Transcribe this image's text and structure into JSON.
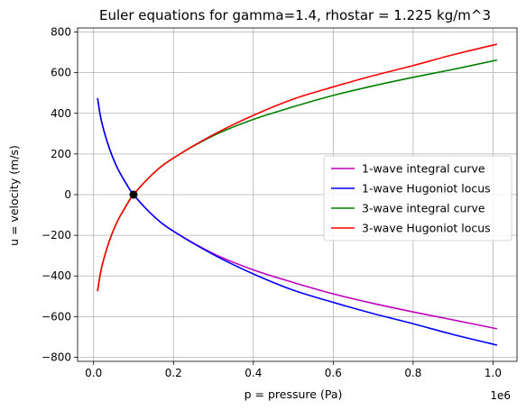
{
  "chart_data": {
    "type": "line",
    "title": "Euler equations for gamma=1.4, rhostar = 1.225 kg/m^3",
    "xlabel": "p = pressure (Pa)",
    "ylabel": "u = velocity (m/s)",
    "x_offset_label": "1e6",
    "xlim": [
      -40000,
      1060000
    ],
    "ylim": [
      -820,
      820
    ],
    "x_ticks": [
      0,
      200000,
      400000,
      600000,
      800000,
      1000000
    ],
    "x_tick_labels": [
      "0.0",
      "0.2",
      "0.4",
      "0.6",
      "0.8",
      "1.0"
    ],
    "y_ticks": [
      -800,
      -600,
      -400,
      -200,
      0,
      200,
      400,
      600,
      800
    ],
    "y_tick_labels": [
      "−800",
      "−600",
      "−400",
      "−200",
      "0",
      "200",
      "400",
      "600",
      "800"
    ],
    "grid": true,
    "legend_position": "center-right",
    "x": [
      10000,
      20000,
      40000,
      60000,
      80000,
      100000,
      150000,
      200000,
      300000,
      400000,
      500000,
      600000,
      700000,
      800000,
      900000,
      1010000
    ],
    "series": [
      {
        "name": "1-wave integral curve",
        "color": "#bf00bf",
        "values": [
          475,
          360,
          225,
          130,
          60,
          0,
          -105,
          -180,
          -290,
          -370,
          -432,
          -488,
          -535,
          -577,
          -616,
          -660
        ]
      },
      {
        "name": "1-wave Hugoniot locus",
        "color": "#0000ff",
        "values": [
          475,
          360,
          225,
          130,
          60,
          0,
          -105,
          -180,
          -295,
          -390,
          -470,
          -530,
          -585,
          -635,
          -688,
          -740
        ]
      },
      {
        "name": "3-wave integral curve",
        "color": "#008000",
        "values": [
          -475,
          -360,
          -225,
          -130,
          -60,
          0,
          105,
          180,
          290,
          370,
          432,
          488,
          535,
          577,
          616,
          662
        ]
      },
      {
        "name": "3-wave Hugoniot locus",
        "color": "#ff0000",
        "values": [
          -475,
          -360,
          -225,
          -130,
          -60,
          0,
          105,
          180,
          295,
          390,
          470,
          530,
          585,
          635,
          688,
          740
        ]
      }
    ],
    "marker": {
      "x": 100000,
      "y": 0,
      "color": "#000000"
    }
  }
}
